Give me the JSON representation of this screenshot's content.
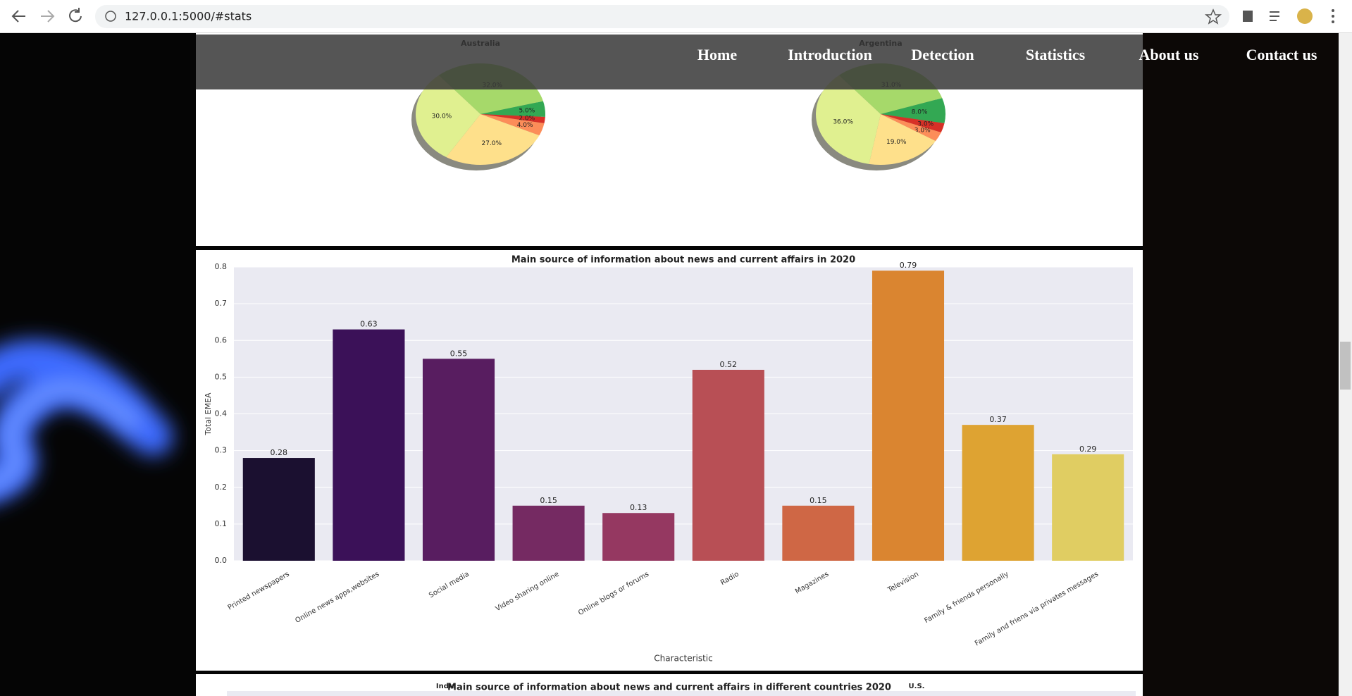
{
  "browser": {
    "url": "127.0.0.1:5000/#stats"
  },
  "nav": [
    "Home",
    "Introduction",
    "Detection",
    "Statistics",
    "About us",
    "Contact us"
  ],
  "chart_data": [
    {
      "type": "pie",
      "title": "Australia",
      "values": [
        32,
        5,
        2,
        4,
        27,
        30
      ],
      "value_labels": [
        "32.0%",
        "5.0%",
        "2.0%",
        "4.0%",
        "27.0%",
        "30.0%"
      ],
      "colors": [
        "#a6d96a",
        "#33a853",
        "#d73027",
        "#fc8d59",
        "#fee08b",
        "#e0f090"
      ]
    },
    {
      "type": "pie",
      "title": "Argentina",
      "values": [
        31,
        8,
        3,
        3,
        19,
        36
      ],
      "value_labels": [
        "31.0%",
        "8.0%",
        "3.0%",
        "3.0%",
        "19.0%",
        "36.0%"
      ],
      "colors": [
        "#a6d96a",
        "#33a853",
        "#d73027",
        "#fc8d59",
        "#fee08b",
        "#e0f090"
      ]
    },
    {
      "type": "bar",
      "title": "Main source of information about news and current affairs in 2020",
      "x_label": "Characteristic",
      "y_label": "Total EMEA",
      "categories": [
        "Printed newspapers",
        "Online news apps,websites",
        "Social media",
        "Video sharing online",
        "Online blogs or forums",
        "Radio",
        "Magazines",
        "Television",
        "Family & friends personally",
        "Family and friens via privates messages"
      ],
      "values": [
        0.28,
        0.63,
        0.55,
        0.15,
        0.13,
        0.52,
        0.15,
        0.79,
        0.37,
        0.29
      ],
      "colors": [
        "#1b1030",
        "#3b1158",
        "#581d60",
        "#752a62",
        "#953861",
        "#b84f55",
        "#cf6745",
        "#da8530",
        "#dea332",
        "#e0cd62"
      ],
      "ylim": [
        0,
        0.8
      ],
      "yticks": [
        {
          "value": 0,
          "label": "0.0"
        },
        0.1,
        0.2,
        0.3,
        0.4,
        0.5,
        0.6,
        0.7,
        0.8
      ],
      "grid": true
    }
  ],
  "partial_chart": {
    "title": "Main source of information about news and current affairs in different countries 2020",
    "panels": [
      "India",
      "U.S."
    ]
  }
}
